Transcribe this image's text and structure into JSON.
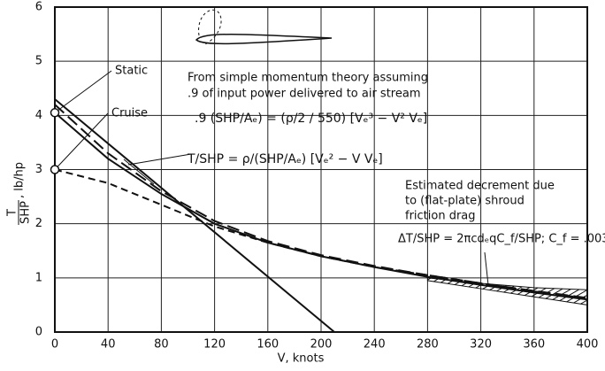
{
  "chart_data": {
    "type": "line",
    "ylabel": {
      "numerator": "T",
      "denominator": "SHP",
      "unit": ", lb/hp"
    },
    "xlabel": "V, knots",
    "xlim": [
      0,
      400
    ],
    "xticks": [
      0,
      40,
      80,
      120,
      160,
      200,
      240,
      280,
      320,
      360,
      400
    ],
    "ylim": [
      0,
      6
    ],
    "yticks": [
      0,
      1,
      2,
      3,
      4,
      5,
      6
    ],
    "grid": true,
    "series": [
      {
        "name": "Static",
        "color": "#111",
        "dash": "none",
        "x": [
          0,
          40,
          80,
          120,
          160,
          200,
          240,
          280,
          320,
          360,
          400
        ],
        "values": [
          4.05,
          3.2,
          2.55,
          2.0,
          1.65,
          1.4,
          1.2,
          1.02,
          0.87,
          0.73,
          0.6
        ]
      },
      {
        "name": "Cruise",
        "color": "#111",
        "dash": "8 5",
        "x": [
          0,
          40,
          80,
          120,
          160,
          200,
          240,
          280,
          320,
          360,
          400
        ],
        "values": [
          3.0,
          2.75,
          2.35,
          1.95,
          1.65,
          1.4,
          1.2,
          1.05,
          0.9,
          0.75,
          0.62
        ]
      },
      {
        "color": "#111",
        "dash": "14 6",
        "x": [
          0,
          40,
          80,
          120,
          160,
          200,
          240,
          280,
          320,
          360,
          400
        ],
        "values": [
          4.2,
          3.3,
          2.6,
          2.05,
          1.68,
          1.42,
          1.22,
          1.05,
          0.9,
          0.76,
          0.63
        ]
      },
      {
        "color": "#111",
        "dash": "none",
        "x": [
          0,
          210
        ],
        "values": [
          4.3,
          0
        ]
      }
    ],
    "band": {
      "x": [
        280,
        320,
        360,
        400
      ],
      "lower": [
        0.95,
        0.8,
        0.65,
        0.5
      ],
      "upper": [
        1.0,
        0.9,
        0.82,
        0.78
      ]
    },
    "annotations": {
      "momentum": [
        "From simple momentum theory assuming",
        ".9 of input power delivered to air stream"
      ],
      "eq1": ".9 (SHP/Aₑ) = (ρ/2 / 550) [Vₑ³ − V² Vₑ]",
      "eq2": "T/SHP = ρ/(SHP/Aₑ) [Vₑ² − V Vₑ]",
      "decrement": [
        "Estimated decrement due",
        "to (flat-plate) shroud",
        "friction drag"
      ],
      "eq3": "ΔT/SHP = 2πcdₑqC_f/SHP;  C_f = .003"
    }
  }
}
